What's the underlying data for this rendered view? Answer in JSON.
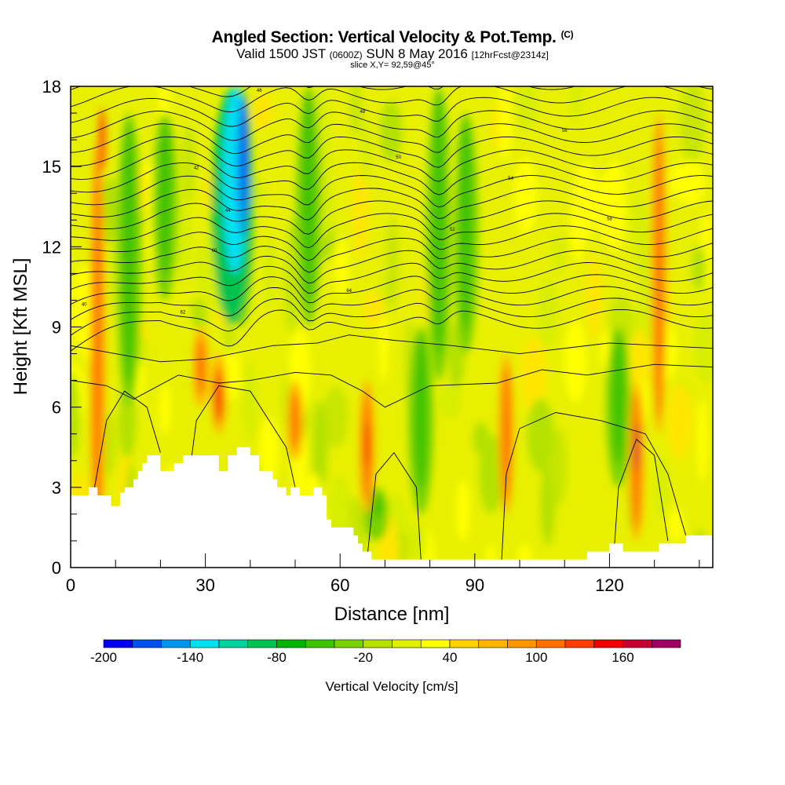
{
  "header": {
    "title": "Angled Section: Vertical Velocity & Pot.Temp.",
    "title_units": "(C)",
    "valid_prefix": "Valid 1500 JST",
    "valid_utc": "(0600Z)",
    "valid_date": "SUN 8 May 2016",
    "forecast": "[12hrFcst@2314z]",
    "slice": "slice X,Y= 92,59@45°"
  },
  "chart_data": {
    "type": "heatmap",
    "xlabel": "Distance [nm]",
    "ylabel": "Height [Kft MSL]",
    "xlim": [
      0,
      143
    ],
    "ylim": [
      0,
      18
    ],
    "x_ticks": [
      0,
      30,
      60,
      90,
      120
    ],
    "y_ticks": [
      0,
      3,
      6,
      9,
      12,
      15,
      18
    ],
    "colorbar": {
      "title": "Vertical Velocity [cm/s]",
      "min": -200,
      "max": 200,
      "step": 20,
      "tick_values": [
        -200,
        -140,
        -80,
        -20,
        40,
        100,
        160
      ],
      "colors": [
        "#0000f0",
        "#0050f0",
        "#0096f0",
        "#00e1f0",
        "#00d2a0",
        "#00c350",
        "#00b400",
        "#3cc300",
        "#78d200",
        "#b4e100",
        "#e1f000",
        "#ffff00",
        "#ffd200",
        "#ffb400",
        "#ff9600",
        "#ff6e00",
        "#ff3c00",
        "#f00000",
        "#c80032",
        "#a00064",
        "#780096",
        "#500096"
      ]
    },
    "terrain_kft": [
      [
        0,
        2.7
      ],
      [
        4,
        2.7
      ],
      [
        4,
        3.0
      ],
      [
        6,
        3.0
      ],
      [
        6,
        2.7
      ],
      [
        9,
        2.7
      ],
      [
        9,
        2.3
      ],
      [
        11,
        2.3
      ],
      [
        11,
        2.8
      ],
      [
        12,
        2.8
      ],
      [
        12,
        3.0
      ],
      [
        14,
        3.0
      ],
      [
        14,
        3.3
      ],
      [
        15,
        3.3
      ],
      [
        15,
        3.6
      ],
      [
        16,
        3.6
      ],
      [
        16,
        3.9
      ],
      [
        17,
        3.9
      ],
      [
        17,
        4.2
      ],
      [
        20,
        4.2
      ],
      [
        20,
        3.6
      ],
      [
        23,
        3.6
      ],
      [
        23,
        3.9
      ],
      [
        25,
        3.9
      ],
      [
        25,
        4.2
      ],
      [
        33,
        4.2
      ],
      [
        33,
        3.6
      ],
      [
        35,
        3.6
      ],
      [
        35,
        4.2
      ],
      [
        37,
        4.2
      ],
      [
        37,
        4.5
      ],
      [
        40,
        4.5
      ],
      [
        40,
        4.2
      ],
      [
        42,
        4.2
      ],
      [
        42,
        3.6
      ],
      [
        45,
        3.6
      ],
      [
        45,
        3.3
      ],
      [
        46,
        3.3
      ],
      [
        46,
        3.0
      ],
      [
        48,
        3.0
      ],
      [
        48,
        2.7
      ],
      [
        49,
        2.7
      ],
      [
        49,
        3.0
      ],
      [
        51,
        3.0
      ],
      [
        51,
        2.7
      ],
      [
        54,
        2.7
      ],
      [
        54,
        3.0
      ],
      [
        56,
        3.0
      ],
      [
        56,
        2.7
      ],
      [
        57,
        2.7
      ],
      [
        57,
        1.8
      ],
      [
        58,
        1.8
      ],
      [
        58,
        1.5
      ],
      [
        60,
        1.5
      ],
      [
        60,
        1.5
      ],
      [
        63,
        1.5
      ],
      [
        63,
        1.2
      ],
      [
        64,
        1.2
      ],
      [
        64,
        0.9
      ],
      [
        65,
        0.9
      ],
      [
        65,
        0.6
      ],
      [
        67,
        0.6
      ],
      [
        67,
        0.3
      ],
      [
        115,
        0.3
      ],
      [
        115,
        0.6
      ],
      [
        120,
        0.6
      ],
      [
        120,
        0.9
      ],
      [
        123,
        0.9
      ],
      [
        123,
        0.6
      ],
      [
        131,
        0.6
      ],
      [
        131,
        0.9
      ],
      [
        137,
        0.9
      ],
      [
        137,
        1.2
      ],
      [
        143,
        1.2
      ]
    ],
    "updraft_cores": [
      [
        6,
        0,
        16
      ],
      [
        33,
        5,
        8
      ],
      [
        50,
        4,
        7
      ],
      [
        66,
        2,
        7
      ],
      [
        97,
        2,
        8
      ],
      [
        126,
        1,
        7
      ],
      [
        131,
        5,
        17
      ],
      [
        29,
        6,
        9
      ]
    ],
    "downdraft_cores": [
      [
        38,
        9,
        18
      ],
      [
        13,
        6,
        17
      ],
      [
        21,
        10,
        17
      ],
      [
        53,
        9,
        18
      ],
      [
        82,
        7,
        18
      ],
      [
        88,
        8,
        17
      ],
      [
        68,
        1,
        3
      ],
      [
        78,
        2,
        9
      ],
      [
        122,
        3,
        9
      ]
    ],
    "contour_labels": [
      "40",
      "42",
      "44",
      "46",
      "48",
      "50",
      "52",
      "54",
      "56",
      "58",
      "60",
      "62",
      "64"
    ]
  }
}
